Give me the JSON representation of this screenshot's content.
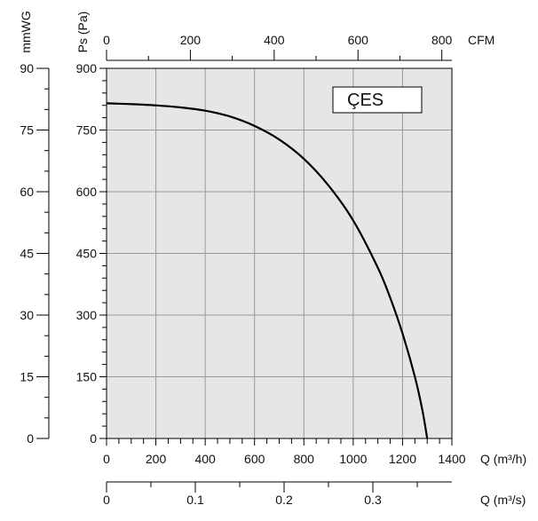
{
  "chart_data": {
    "type": "line",
    "legend_label": "ÇES",
    "legend_placement": "top-right",
    "grid": true,
    "plot_background": "#e6e6e6",
    "grid_color": "#9a9a9a",
    "line_color": "#000000",
    "x_axis": {
      "label": "Q (m³/h)",
      "range": [
        0,
        1400
      ],
      "ticks": [
        "0",
        "200",
        "400",
        "600",
        "800",
        "1000",
        "1200",
        "1400"
      ]
    },
    "x_axis_top": {
      "label": "CFM",
      "range": [
        0,
        824
      ],
      "ticks": [
        "0",
        "200",
        "400",
        "600",
        "800"
      ]
    },
    "x_axis_bottom2": {
      "label": "Q (m³/s)",
      "range": [
        0,
        0.389
      ],
      "ticks": [
        "0",
        "0.1",
        "0.2",
        "0.3"
      ]
    },
    "y_axis": {
      "label": "Ps (Pa)",
      "range": [
        0,
        900
      ],
      "ticks": [
        "0",
        "150",
        "300",
        "450",
        "600",
        "750",
        "900"
      ]
    },
    "y_axis_left": {
      "label": "mmWG",
      "range": [
        0,
        90
      ],
      "ticks": [
        "0",
        "15",
        "30",
        "45",
        "60",
        "75",
        "90"
      ]
    },
    "series": [
      {
        "name": "ÇES",
        "x": [
          0,
          100,
          200,
          300,
          400,
          500,
          600,
          700,
          800,
          900,
          1000,
          1100,
          1150,
          1200,
          1250,
          1280,
          1300
        ],
        "y": [
          815,
          813,
          810,
          805,
          797,
          783,
          760,
          727,
          680,
          615,
          530,
          415,
          342,
          255,
          150,
          70,
          0
        ]
      }
    ]
  }
}
